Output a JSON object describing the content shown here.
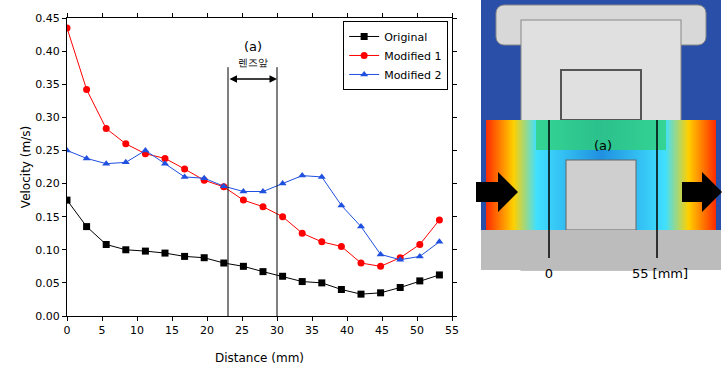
{
  "chart_data": {
    "type": "line",
    "x_label": "Distance (mm)",
    "y_label": "Velocity (m/s)",
    "x": [
      0,
      2.8,
      5.6,
      8.4,
      11.2,
      14,
      16.8,
      19.6,
      22.4,
      25.2,
      28,
      30.8,
      33.6,
      36.4,
      39.2,
      42,
      44.8,
      47.6,
      50.4,
      53.2
    ],
    "series": [
      {
        "name": "Original",
        "color": "#000000",
        "marker": "square",
        "values": [
          0.175,
          0.135,
          0.108,
          0.1,
          0.098,
          0.095,
          0.09,
          0.088,
          0.08,
          0.075,
          0.067,
          0.06,
          0.052,
          0.05,
          0.04,
          0.033,
          0.035,
          0.043,
          0.053,
          0.062
        ]
      },
      {
        "name": "Modified 1",
        "color": "#ff0000",
        "marker": "circle",
        "values": [
          0.435,
          0.342,
          0.283,
          0.26,
          0.245,
          0.238,
          0.222,
          0.205,
          0.195,
          0.175,
          0.165,
          0.15,
          0.125,
          0.112,
          0.105,
          0.08,
          0.075,
          0.088,
          0.108,
          0.145
        ]
      },
      {
        "name": "Modified 2",
        "color": "#2050e0",
        "marker": "triangle-up",
        "values": [
          0.25,
          0.238,
          0.23,
          0.232,
          0.25,
          0.23,
          0.21,
          0.208,
          0.196,
          0.188,
          0.188,
          0.2,
          0.212,
          0.21,
          0.167,
          0.135,
          0.093,
          0.085,
          0.09,
          0.112
        ]
      }
    ],
    "xlim": [
      0,
      55
    ],
    "xticks": [
      0,
      5,
      10,
      15,
      20,
      25,
      30,
      35,
      40,
      45,
      50,
      55
    ],
    "ylim": [
      0,
      0.45
    ],
    "yticks": [
      {
        "value": 0,
        "label": "0.00"
      },
      {
        "value": 0.05,
        "label": "0.05"
      },
      {
        "value": 0.1,
        "label": "0.10"
      },
      {
        "value": 0.15,
        "label": "0.15"
      },
      {
        "value": 0.2,
        "label": "0.20"
      },
      {
        "value": 0.25,
        "label": "0.25"
      },
      {
        "value": 0.3,
        "label": "0.30"
      },
      {
        "value": 0.35,
        "label": "0.35"
      },
      {
        "value": 0.4,
        "label": "0.40"
      },
      {
        "value": 0.45,
        "label": "0.45"
      }
    ],
    "grid": false,
    "legend": "upper right",
    "annotations": [
      {
        "x": [
          23,
          30
        ],
        "labels": [
          "(a)",
          "렌즈앞"
        ]
      }
    ]
  },
  "figure": {
    "region_label": "(a)",
    "start_label": "0",
    "end_label": "55 [mm]"
  }
}
